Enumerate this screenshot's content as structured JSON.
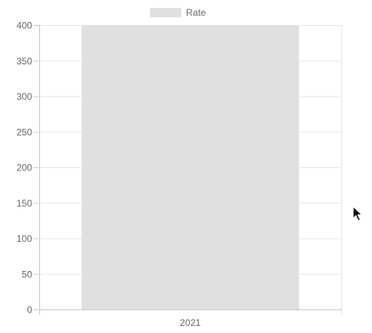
{
  "chart_data": {
    "type": "bar",
    "categories": [
      "2021"
    ],
    "series": [
      {
        "name": "Rate",
        "values": [
          400
        ],
        "color": "#e0e0e0"
      }
    ],
    "ylim": [
      0,
      400
    ],
    "yticks": [
      0,
      50,
      100,
      150,
      200,
      250,
      300,
      350,
      400
    ],
    "grid": true,
    "legend": "top-center"
  },
  "colors": {
    "grid": "#e6e6e6",
    "axis": "#c8c8c8",
    "tick_text": "#666666",
    "bar": "#e0e0e0"
  },
  "cursor_icon": "mouse-pointer-icon"
}
